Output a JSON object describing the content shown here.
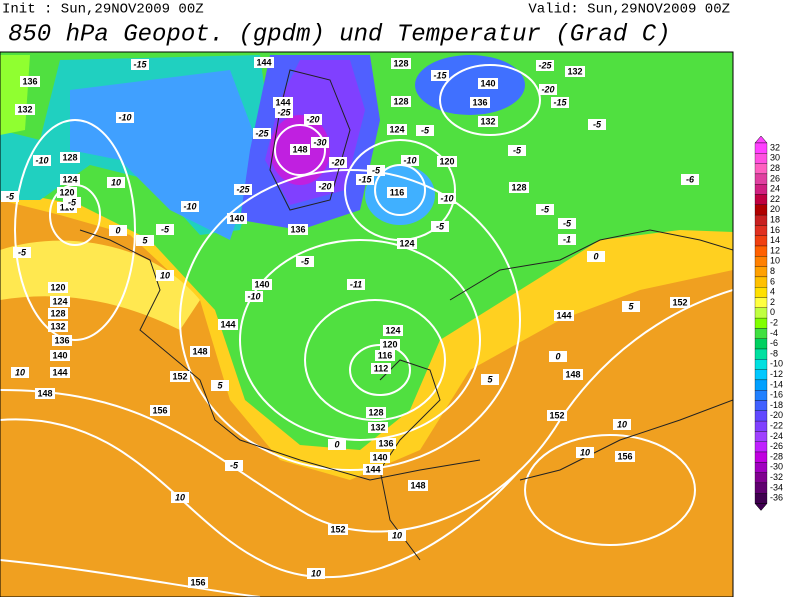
{
  "header": {
    "init": "Init : Sun,29NOV2009 00Z",
    "valid": "Valid: Sun,29NOV2009 00Z",
    "title": "850 hPa Geopot. (gpdm) und Temperatur (Grad C)"
  },
  "legend": {
    "ticks": [
      32,
      30,
      28,
      26,
      24,
      22,
      20,
      18,
      16,
      14,
      12,
      10,
      8,
      6,
      4,
      2,
      0,
      -2,
      -4,
      -6,
      -8,
      -10,
      -12,
      -14,
      -16,
      -18,
      -20,
      -22,
      -24,
      -26,
      -28,
      -30,
      -32,
      -34,
      -36
    ]
  },
  "geopotential_labels": [
    136,
    132,
    128,
    124,
    120,
    116,
    120,
    124,
    128,
    132,
    136,
    140,
    144,
    148,
    152,
    156,
    148,
    144,
    140,
    136,
    144,
    128,
    128,
    124,
    120,
    116,
    124,
    124,
    120,
    116,
    112,
    128,
    132,
    136,
    140,
    144,
    148,
    152,
    156,
    156,
    152,
    152,
    148,
    144,
    140,
    136,
    132,
    132,
    128,
    140,
    148,
    144
  ],
  "temperature_labels": [
    -15,
    -10,
    -10,
    10,
    -10,
    -5,
    -5,
    -5,
    -5,
    0,
    5,
    10,
    10,
    5,
    -5,
    -10,
    -11,
    -5,
    -25,
    -20,
    -30,
    -25,
    -20,
    -25,
    -20,
    -15,
    -10,
    -5,
    -10,
    -5,
    -15,
    -25,
    -20,
    -15,
    -5,
    -5,
    -6,
    -5,
    -5,
    -1,
    0,
    5,
    0,
    -5,
    10,
    10,
    10,
    10,
    10,
    5,
    0
  ]
}
